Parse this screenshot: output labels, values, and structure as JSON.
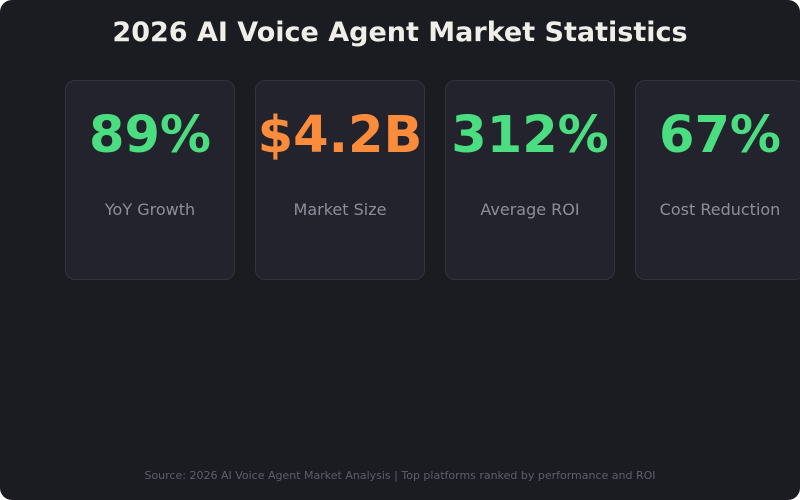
{
  "title": "2026 AI Voice Agent Market Statistics",
  "colors": {
    "green": "#4ade80",
    "orange": "#fb8c3c"
  },
  "stats": [
    {
      "value": "89%",
      "label": "YoY Growth",
      "color": "#4ade80"
    },
    {
      "value": "$4.2B",
      "label": "Market Size",
      "color": "#fb8c3c"
    },
    {
      "value": "312%",
      "label": "Average ROI",
      "color": "#4ade80"
    },
    {
      "value": "67%",
      "label": "Cost Reduction",
      "color": "#4ade80"
    }
  ],
  "source": "Source: 2026 AI Voice Agent Market Analysis | Top platforms ranked by performance and ROI"
}
